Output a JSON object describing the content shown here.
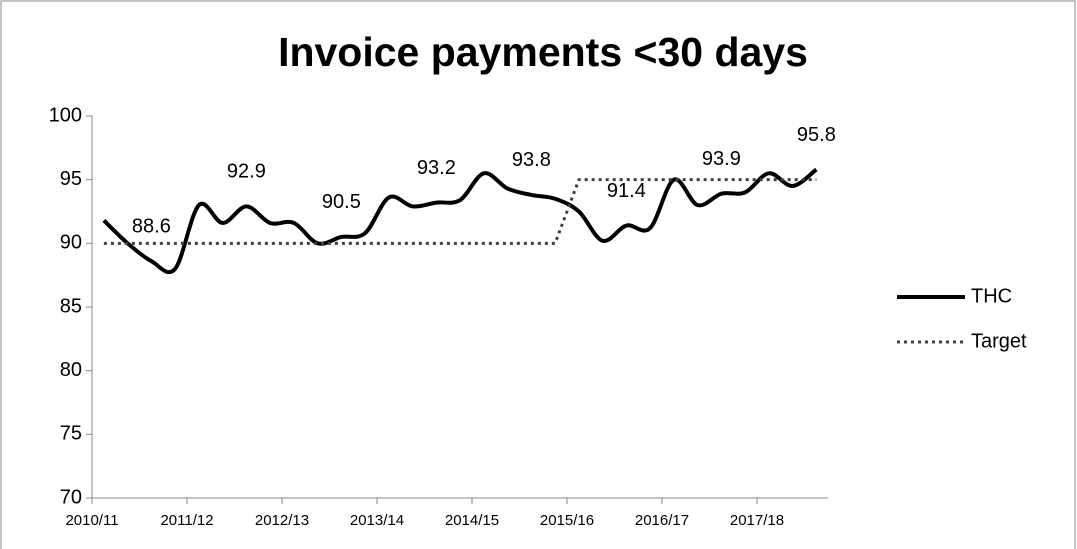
{
  "chart_data": {
    "type": "line",
    "title": "Invoice payments <30 days",
    "categories": [
      "2010/11",
      null,
      null,
      null,
      "2011/12",
      null,
      null,
      null,
      "2012/13",
      null,
      null,
      null,
      "2013/14",
      null,
      null,
      null,
      "2014/15",
      null,
      null,
      null,
      "2015/16",
      null,
      null,
      null,
      "2016/17",
      null,
      null,
      null,
      "2017/18",
      null,
      null
    ],
    "series": [
      {
        "name": "THC",
        "color": "#000000",
        "style": "solid",
        "values": [
          91.8,
          90.0,
          88.6,
          88.0,
          93.0,
          91.6,
          92.9,
          91.6,
          91.6,
          90.0,
          90.5,
          90.8,
          93.6,
          92.9,
          93.2,
          93.4,
          95.5,
          94.3,
          93.8,
          93.5,
          92.5,
          90.2,
          91.4,
          91.2,
          95.0,
          93.0,
          93.9,
          94.0,
          95.5,
          94.5,
          95.8
        ],
        "value_labels": [
          null,
          null,
          "88.6",
          null,
          null,
          null,
          "92.9",
          null,
          null,
          null,
          "90.5",
          null,
          null,
          null,
          "93.2",
          null,
          null,
          null,
          "93.8",
          null,
          null,
          null,
          "91.4",
          null,
          null,
          null,
          "93.9",
          null,
          null,
          null,
          "95.8"
        ]
      },
      {
        "name": "Target",
        "color": "#404040",
        "style": "dotted",
        "values": [
          90,
          90,
          90,
          90,
          90,
          90,
          90,
          90,
          90,
          90,
          90,
          90,
          90,
          90,
          90,
          90,
          90,
          90,
          90,
          90,
          95,
          95,
          95,
          95,
          95,
          95,
          95,
          95,
          95,
          95,
          95
        ]
      }
    ],
    "ylim": [
      70,
      100
    ],
    "yticks": [
      70,
      75,
      80,
      85,
      90,
      95,
      100
    ],
    "legend": "right"
  }
}
